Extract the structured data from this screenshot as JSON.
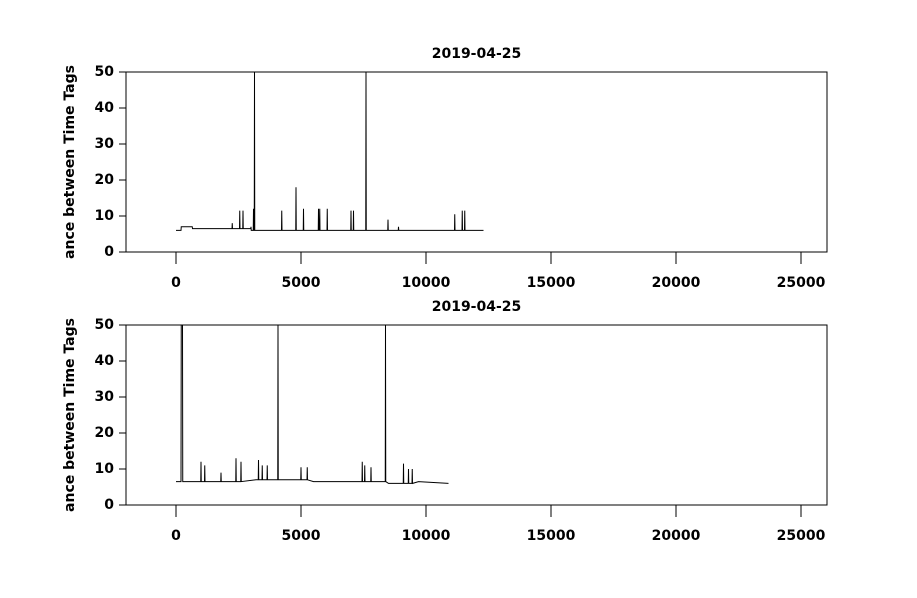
{
  "chart_data": [
    {
      "type": "line",
      "title": "2019-04-25",
      "y_label": "ance between Time Tags",
      "xlim": [
        -2000,
        26040
      ],
      "ylim": [
        0,
        50
      ],
      "xticks": [
        0,
        5000,
        10000,
        15000,
        20000,
        25000
      ],
      "yticks": [
        0,
        10,
        20,
        30,
        40,
        50
      ],
      "x": [
        0,
        200,
        210,
        650,
        660,
        2240,
        2250,
        2260,
        2540,
        2550,
        2560,
        2670,
        2680,
        2690,
        2990,
        3000,
        3010,
        3090,
        3100,
        3110,
        3130,
        3140,
        3150,
        4220,
        4230,
        4240,
        4790,
        4800,
        4810,
        5090,
        5100,
        5110,
        5690,
        5700,
        5710,
        5740,
        5750,
        5760,
        6040,
        6050,
        6060,
        6990,
        7000,
        7010,
        7090,
        7100,
        7110,
        7590,
        7600,
        7610,
        8470,
        8480,
        8490,
        8890,
        8900,
        8910,
        11140,
        11150,
        11160,
        11440,
        11450,
        11460,
        11540,
        11550,
        11560,
        12300
      ],
      "series": [
        {
          "color": "#000000",
          "values": [
            6,
            6,
            7,
            7,
            6.5,
            6.5,
            8,
            6.5,
            6.5,
            11.5,
            6.5,
            6.5,
            11.5,
            6.5,
            6.5,
            7,
            6,
            6,
            12,
            6,
            6,
            50,
            6,
            6,
            11.5,
            6,
            6,
            18,
            6,
            6,
            12,
            6,
            6,
            12,
            6,
            6,
            12,
            6,
            6,
            12,
            6,
            6,
            11.5,
            6,
            6,
            11.5,
            6,
            6,
            50,
            6,
            6,
            9,
            6,
            6,
            7,
            6,
            6,
            10.5,
            6,
            6,
            11.5,
            6,
            6,
            11.5,
            6,
            6
          ]
        }
      ]
    },
    {
      "type": "line",
      "title": "2019-04-25",
      "y_label": "ance between Time Tags",
      "xlim": [
        -2000,
        26040
      ],
      "ylim": [
        0,
        50
      ],
      "xticks": [
        0,
        5000,
        10000,
        15000,
        20000,
        25000
      ],
      "yticks": [
        0,
        10,
        20,
        30,
        40,
        50
      ],
      "x": [
        0,
        200,
        210,
        220,
        260,
        270,
        990,
        1000,
        1010,
        1140,
        1150,
        1160,
        1790,
        1800,
        1810,
        2390,
        2400,
        2410,
        2590,
        2600,
        2610,
        3200,
        3290,
        3300,
        3310,
        3440,
        3450,
        3460,
        3640,
        3650,
        3660,
        4070,
        4080,
        4090,
        4990,
        5000,
        5010,
        5240,
        5250,
        5260,
        5500,
        7440,
        7450,
        7460,
        7540,
        7550,
        7560,
        7790,
        7800,
        7810,
        8370,
        8380,
        8390,
        8500,
        9090,
        9100,
        9110,
        9290,
        9300,
        9310,
        9440,
        9450,
        9460,
        9700,
        10900
      ],
      "series": [
        {
          "color": "#000000",
          "values": [
            6.5,
            6.5,
            50,
            50,
            50,
            6.5,
            6.5,
            12,
            6.5,
            6.5,
            11,
            6.5,
            6.5,
            9,
            6.5,
            6.5,
            13,
            6.5,
            6.5,
            12,
            6.5,
            7,
            7,
            12.5,
            7,
            7,
            11,
            7,
            7,
            11,
            7,
            7,
            50,
            7,
            7,
            10.5,
            7,
            7,
            10.5,
            7,
            6.5,
            6.5,
            12,
            6.5,
            6.5,
            11,
            6.5,
            6.5,
            10.5,
            6.5,
            6.5,
            50,
            6.5,
            6,
            6,
            11.5,
            6,
            6,
            10,
            6,
            6,
            10,
            6,
            6.5,
            6
          ]
        }
      ]
    }
  ]
}
